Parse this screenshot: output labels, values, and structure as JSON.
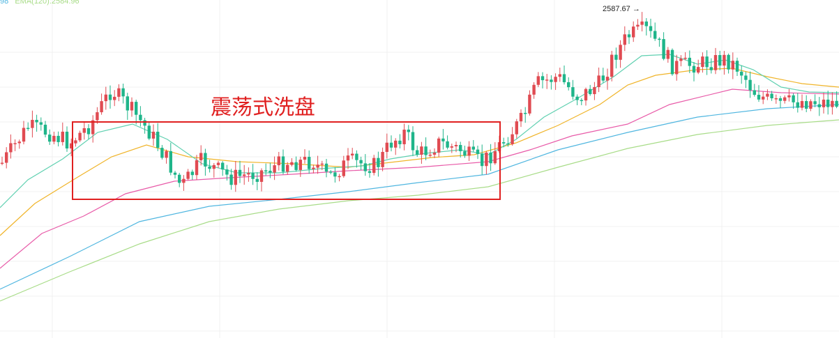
{
  "legend": {
    "partial_value": "98",
    "ema120_label": "EMA(120):2584.96"
  },
  "colors": {
    "up": "#e04b52",
    "down": "#1fb58a",
    "ema_short": "#5fd0b0",
    "ema_mid": "#f0b429",
    "ema_long": "#e85aa8",
    "ema_xlong": "#4fb6e0",
    "ema120": "#a8dc88",
    "annotation": "#e02020"
  },
  "annotation": {
    "text": "震荡式洗盘"
  },
  "high_marker": {
    "text": "2587.67 →"
  },
  "chart_data": {
    "type": "candlestick",
    "title": "",
    "xlabel": "",
    "ylabel": "",
    "high_label_value": 2587.67,
    "series": [
      {
        "name": "EMA(120)",
        "last_value": 2584.96
      }
    ],
    "annotations": [
      {
        "text": "震荡式洗盘",
        "kind": "box"
      }
    ],
    "grid": true
  }
}
